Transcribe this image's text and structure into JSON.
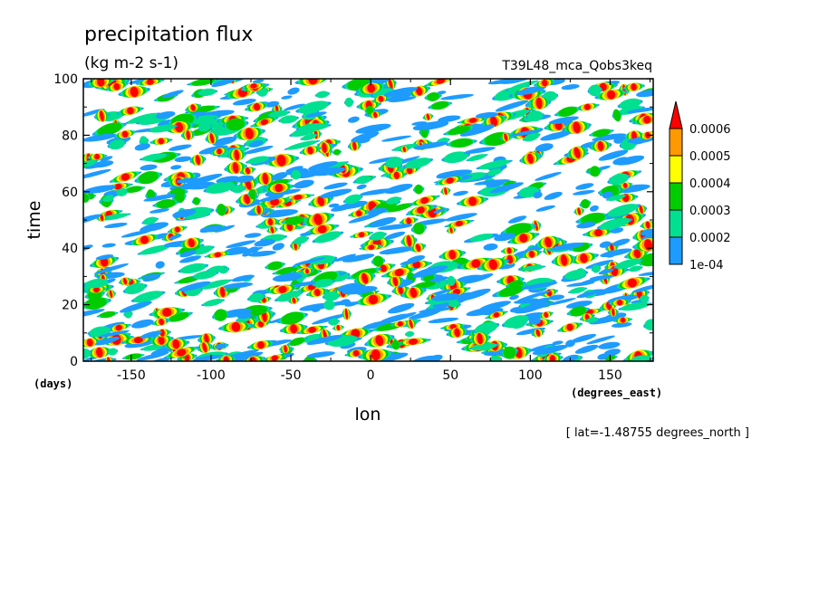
{
  "chart_data": {
    "type": "heatmap",
    "title": "precipitation flux",
    "units": "(kg m-2 s-1)",
    "experiment": "T39L48_mca_Qobs3keq",
    "xlabel": "lon",
    "xunits": "(degrees_east)",
    "ylabel": "time",
    "yunits": "(days)",
    "footnote": "[ lat=-1.48755 degrees_north ]",
    "xlim": [
      -180,
      177
    ],
    "ylim": [
      0,
      100
    ],
    "x_ticks": [
      -150,
      -100,
      -50,
      0,
      50,
      100,
      150
    ],
    "x_tick_labels": [
      "-150",
      "-100",
      "-50",
      "0",
      "50",
      "100",
      "150"
    ],
    "y_ticks": [
      0,
      20,
      40,
      60,
      80,
      100
    ],
    "y_tick_labels": [
      "0",
      "20",
      "40",
      "60",
      "80",
      "100"
    ],
    "colorbar": {
      "levels": [
        "1e-04",
        "0.0002",
        "0.0003",
        "0.0004",
        "0.0005",
        "0.0006"
      ],
      "colors": [
        "#1e9bff",
        "#00e090",
        "#00cc00",
        "#ffff00",
        "#ff9900",
        "#ff0000"
      ]
    }
  }
}
